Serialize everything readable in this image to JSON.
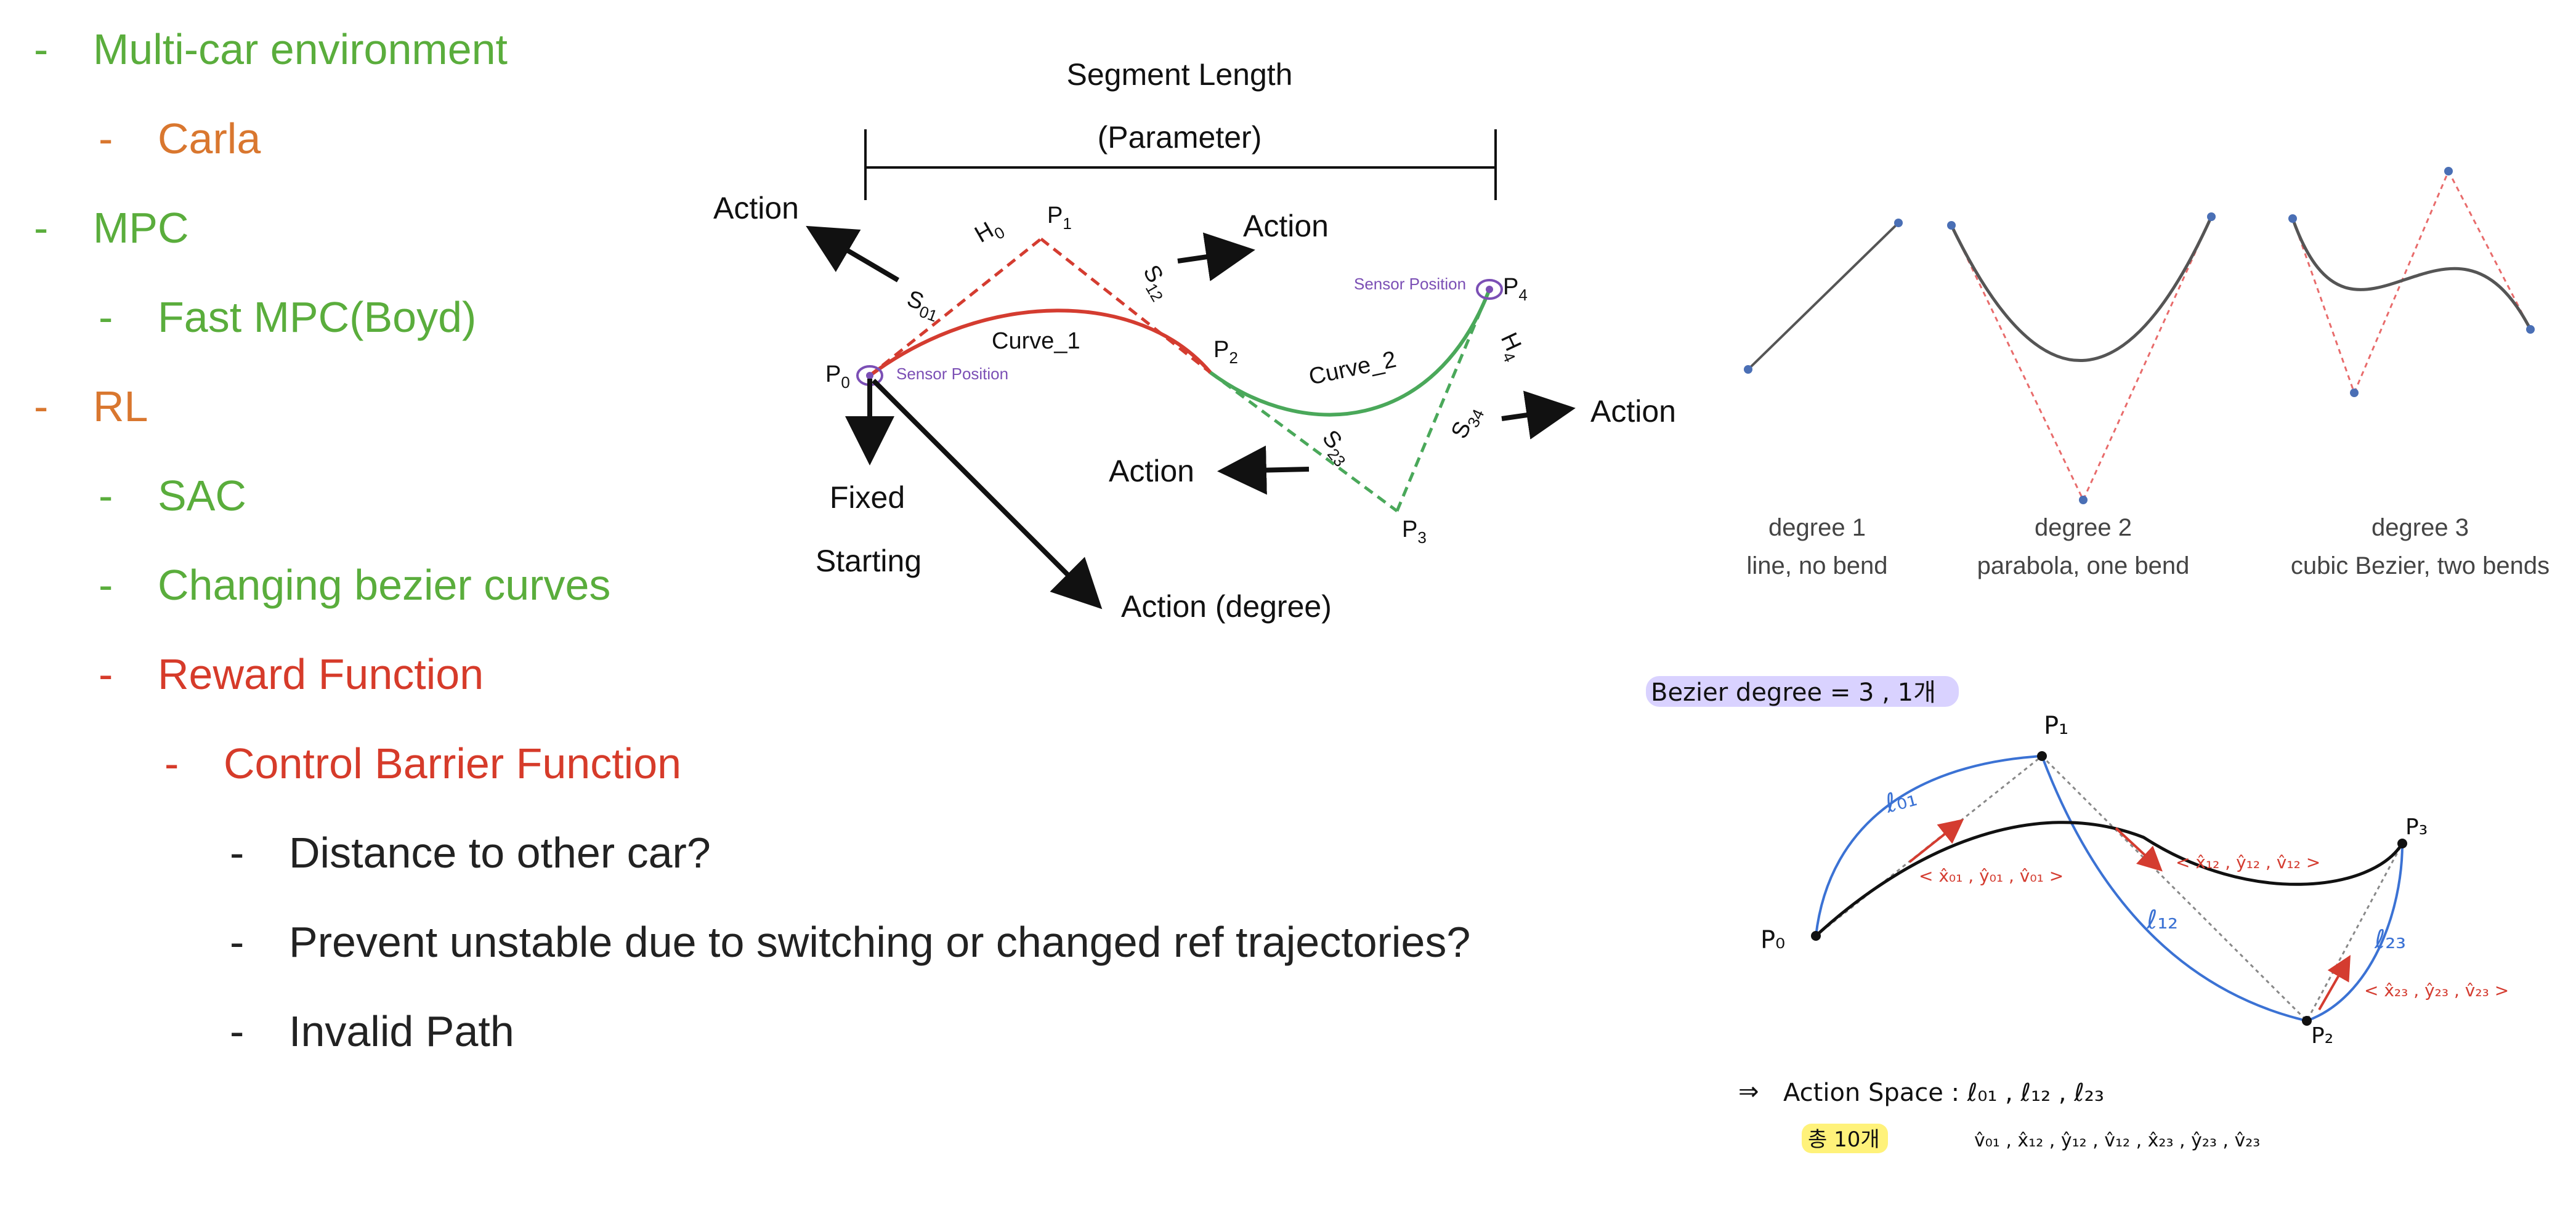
{
  "colors": {
    "green": "#5aad3c",
    "orange": "#d9772f",
    "red": "#d63b2a",
    "black": "#222222",
    "purple": "#7b4fb5",
    "blue": "#3b72d4",
    "curve_red": "#d43c30",
    "curve_green": "#4aa85a",
    "gray_curve": "#555555",
    "pink_dashed": "#e86b6b",
    "point_blue": "#4a6fb5",
    "highlight_purple": "#d9d2ff",
    "highlight_yellow": "#fff27a"
  },
  "outline": [
    {
      "text": "Multi-car environment",
      "level": 0,
      "color": "#5aad3c"
    },
    {
      "text": "Carla",
      "level": 1,
      "color": "#d9772f"
    },
    {
      "text": "MPC",
      "level": 0,
      "color": "#5aad3c"
    },
    {
      "text": "Fast MPC(Boyd)",
      "level": 1,
      "color": "#5aad3c"
    },
    {
      "text": "RL",
      "level": 0,
      "color": "#d9772f"
    },
    {
      "text": "SAC",
      "level": 1,
      "color": "#5aad3c"
    },
    {
      "text": "Changing bezier curves",
      "level": 1,
      "color": "#5aad3c"
    },
    {
      "text": "Reward Function",
      "level": 1,
      "color": "#d63b2a"
    },
    {
      "text": "Control Barrier Function",
      "level": 2,
      "color": "#d63b2a"
    },
    {
      "text": "Distance to other car?",
      "level": 3,
      "color": "#222222"
    },
    {
      "text": "Prevent unstable due to switching or changed ref trajectories?",
      "level": 3,
      "color": "#222222"
    },
    {
      "text": "Invalid Path",
      "level": 3,
      "color": "#222222"
    }
  ],
  "diagram": {
    "segment_length": "Segment Length",
    "parameter": "(Parameter)",
    "action": "Action",
    "action_degree": "Action (degree)",
    "fixed": "Fixed",
    "starting": "Starting",
    "sensor_position": "Sensor Position",
    "curve_1": "Curve_1",
    "curve_2": "Curve_2",
    "p0": "P",
    "p0_sub": "0",
    "p1": "P",
    "p1_sub": "1",
    "p2": "P",
    "p2_sub": "2",
    "p3": "P",
    "p3_sub": "3",
    "p4": "P",
    "p4_sub": "4",
    "h0": "H",
    "h0_sub": "0",
    "h4": "H",
    "h4_sub": "4",
    "s01": "S",
    "s01_sub": "01",
    "s12": "S",
    "s12_sub": "12",
    "s23": "S",
    "s23_sub": "23",
    "s34": "S",
    "s34_sub": "34"
  },
  "degrees": [
    {
      "title": "degree 1",
      "subtitle": "line, no bend"
    },
    {
      "title": "degree 2",
      "subtitle": "parabola, one bend"
    },
    {
      "title": "degree 3",
      "subtitle": "cubic Bezier, two bends"
    }
  ],
  "notes": {
    "header": "Bezier  degree = 3 ,  1개",
    "p0": "P₀",
    "p1": "P₁",
    "p2": "P₂",
    "p3": "P₃",
    "l01": "ℓ₀₁",
    "l12": "ℓ₁₂",
    "l23": "ℓ₂₃",
    "vec01": "< x̂₀₁ , ŷ₀₁ , v̂₀₁ >",
    "vec12": "< x̂₁₂ , ŷ₁₂ , v̂₁₂ >",
    "vec23": "< x̂₂₃ , ŷ₂₃ , v̂₂₃ >",
    "arrow": "⇒",
    "action_space": "Action Space  :  ℓ₀₁ , ℓ₁₂ , ℓ₂₃",
    "total": "총 10개",
    "action_list": "v̂₀₁ , x̂₁₂ , ŷ₁₂ , v̂₁₂ , x̂₂₃ , ŷ₂₃ , v̂₂₃"
  }
}
